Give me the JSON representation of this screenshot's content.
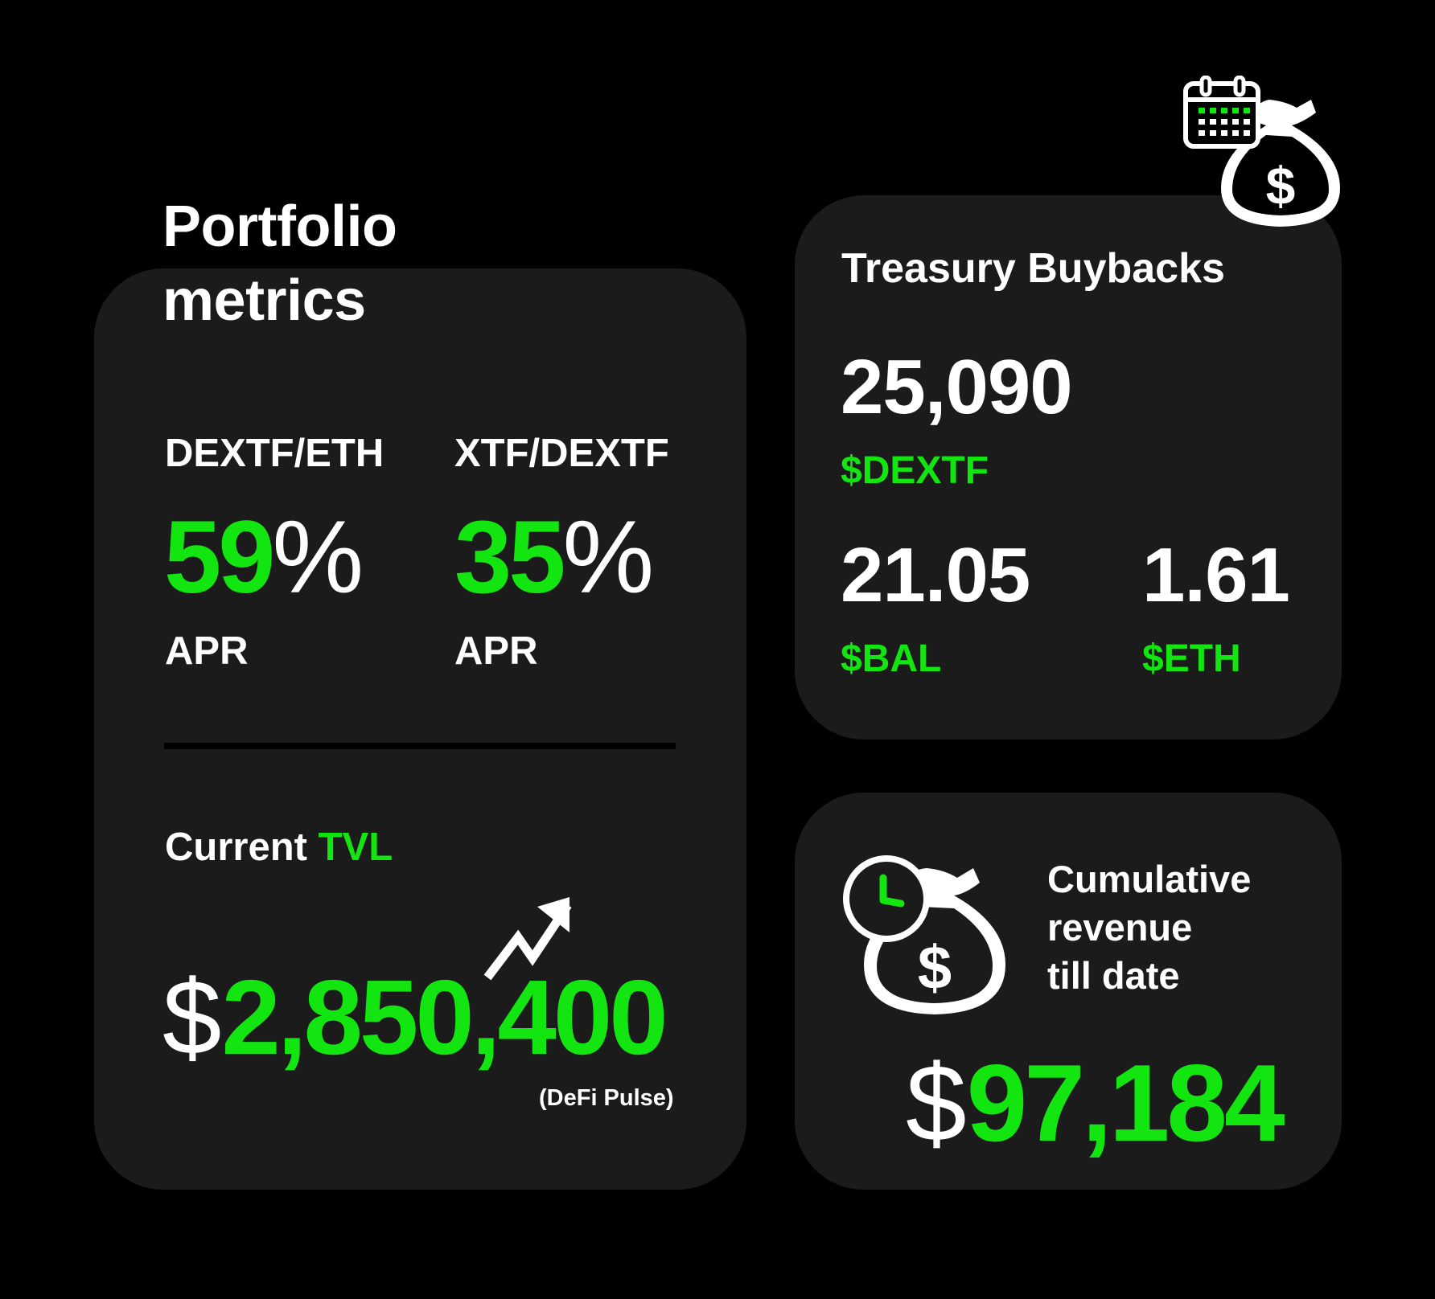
{
  "colors": {
    "background": "#000000",
    "card": "#1b1b1b",
    "accent_green": "#13e510",
    "text": "#ffffff"
  },
  "portfolio": {
    "title_line1": "Portfolio",
    "title_line2": "metrics",
    "pairs": [
      {
        "label": "DEXTF/ETH",
        "value": "59",
        "unit": "%",
        "metric": "APR"
      },
      {
        "label": "XTF/DEXTF",
        "value": "35",
        "unit": "%",
        "metric": "APR"
      }
    ],
    "tvl": {
      "label_prefix": "Current",
      "label_highlight": "TVL",
      "currency": "$",
      "value": "2,850,400",
      "source": "(DeFi Pulse)",
      "icon": "trend-up-arrow-icon"
    }
  },
  "treasury": {
    "title": "Treasury Buybacks",
    "icon": "calendar-money-bag-icon",
    "items": [
      {
        "value": "25,090",
        "token": "$DEXTF"
      },
      {
        "value": "21.05",
        "token": "$BAL"
      },
      {
        "value": "1.61",
        "token": "$ETH"
      }
    ]
  },
  "revenue": {
    "icon": "clock-money-bag-icon",
    "label_line1": "Cumulative",
    "label_line2": "revenue",
    "label_line3": "till date",
    "currency": "$",
    "value": "97,184"
  }
}
